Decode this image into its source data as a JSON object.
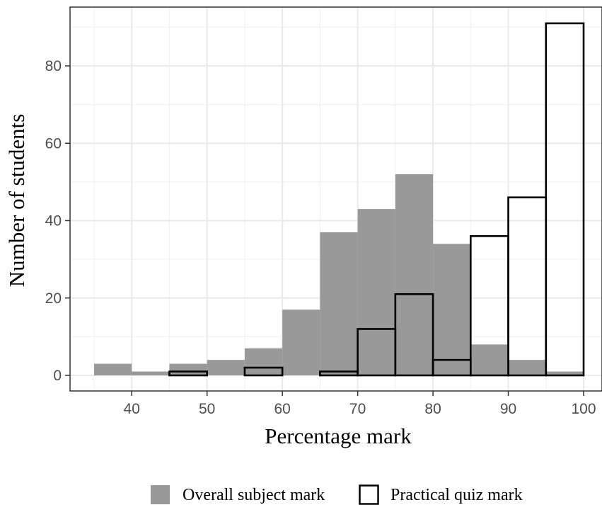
{
  "chart_data": {
    "type": "bar",
    "xlabel": "Percentage mark",
    "ylabel": "Number of students",
    "xlim": [
      35,
      100
    ],
    "ylim": [
      0,
      95
    ],
    "x_ticks": [
      40,
      50,
      60,
      70,
      80,
      90,
      100
    ],
    "y_ticks": [
      0,
      20,
      40,
      60,
      80
    ],
    "bin_width": 5,
    "bin_starts": [
      35,
      40,
      45,
      50,
      55,
      60,
      65,
      70,
      75,
      80,
      85,
      90,
      95
    ],
    "grid": true,
    "legend_position": "bottom",
    "series": [
      {
        "name": "Overall subject mark",
        "style": "filled",
        "color": "#999999",
        "values": [
          3,
          1,
          3,
          4,
          7,
          17,
          37,
          43,
          52,
          34,
          8,
          4,
          1
        ]
      },
      {
        "name": "Practical quiz mark",
        "style": "outline",
        "color": "#000000",
        "values": [
          0,
          0,
          1,
          0,
          2,
          0,
          1,
          12,
          21,
          4,
          36,
          46,
          91
        ]
      }
    ]
  }
}
